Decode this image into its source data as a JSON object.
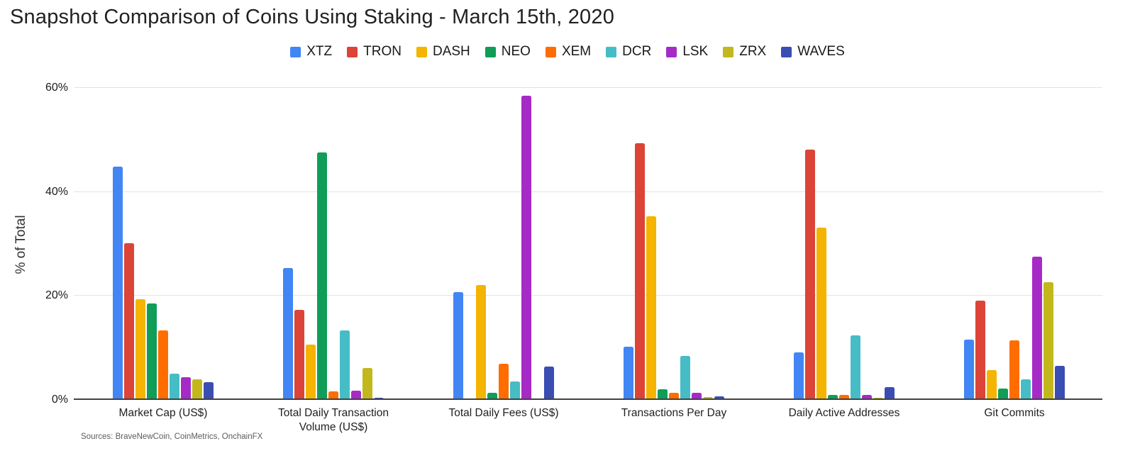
{
  "title": "Snapshot Comparison of Coins Using Staking - March 15th, 2020",
  "source_note": "Sources: BraveNewCoin, CoinMetrics, OnchainFX",
  "chart_data": {
    "type": "bar",
    "title": "Snapshot Comparison of Coins Using Staking - March 15th, 2020",
    "ylabel": "% of Total",
    "xlabel": "",
    "ylim": [
      0,
      60
    ],
    "grid": true,
    "legend_position": "top",
    "yticks": [
      {
        "value": 0,
        "label": "0%"
      },
      {
        "value": 20,
        "label": "20%"
      },
      {
        "value": 40,
        "label": "40%"
      },
      {
        "value": 60,
        "label": "60%"
      }
    ],
    "categories": [
      "Market Cap (US$)",
      "Total Daily Transaction Volume (US$)",
      "Total Daily Fees (US$)",
      "Transactions Per Day",
      "Daily Active Addresses",
      "Git Commits"
    ],
    "series": [
      {
        "name": "XTZ",
        "color": "#4285F4",
        "values": [
          44.9,
          25.4,
          20.7,
          10.2,
          9.2,
          11.6
        ]
      },
      {
        "name": "TRON",
        "color": "#DB4437",
        "values": [
          30.2,
          17.3,
          0,
          49.3,
          48.2,
          19.1
        ]
      },
      {
        "name": "DASH",
        "color": "#F4B400",
        "values": [
          19.3,
          10.7,
          22.1,
          35.3,
          33.2,
          5.7
        ]
      },
      {
        "name": "NEO",
        "color": "#0F9D58",
        "values": [
          18.6,
          47.6,
          1.4,
          2.0,
          1.0,
          2.2
        ]
      },
      {
        "name": "XEM",
        "color": "#FF6D00",
        "values": [
          13.4,
          1.6,
          7.0,
          1.4,
          1.0,
          11.5
        ]
      },
      {
        "name": "DCR",
        "color": "#46BDC6",
        "values": [
          5.1,
          13.4,
          3.5,
          8.5,
          12.4,
          3.9
        ]
      },
      {
        "name": "LSK",
        "color": "#A62BC6",
        "values": [
          4.3,
          1.8,
          58.5,
          1.3,
          0.9,
          27.5
        ]
      },
      {
        "name": "ZRX",
        "color": "#C3B71E",
        "values": [
          4.0,
          6.2,
          0,
          0.6,
          0.4,
          22.7
        ]
      },
      {
        "name": "WAVES",
        "color": "#3A4DB2",
        "values": [
          3.4,
          0.4,
          6.4,
          0.7,
          2.5,
          6.6
        ]
      }
    ]
  }
}
